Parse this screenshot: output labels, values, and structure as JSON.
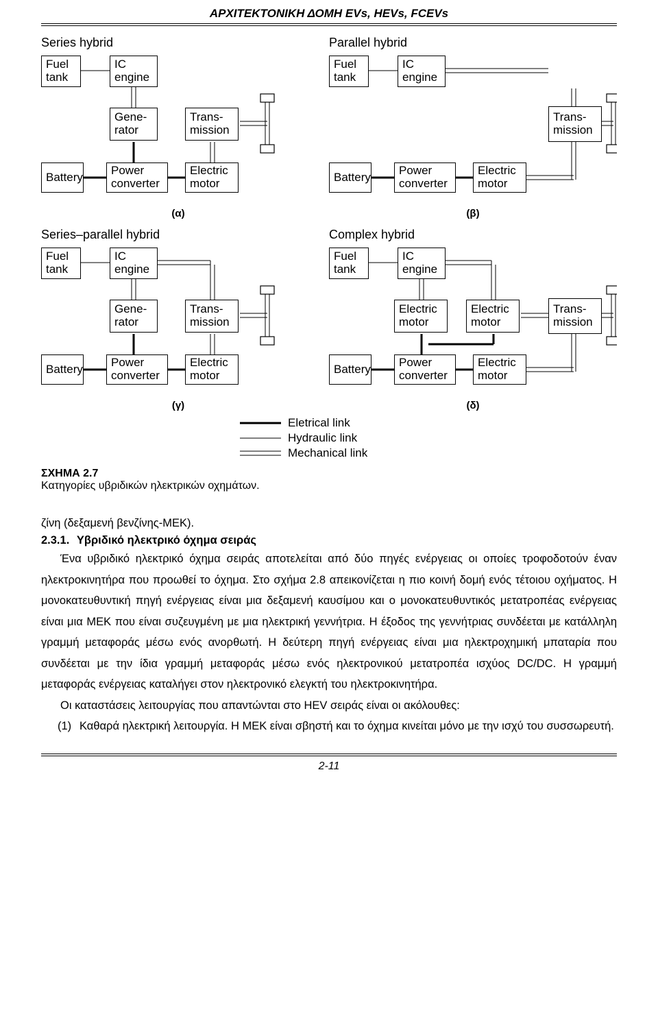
{
  "header": "ΑΡΧΙΤΕΚΤΟΝΙΚΗ ΔΟΜΗ EVs, HEVs, FCEVs",
  "diagrams": {
    "a": {
      "title": "Series hybrid",
      "label": "(α)",
      "boxes": {
        "fuel": "Fuel\ntank",
        "ic": "IC\nengine",
        "gen": "Gene-\nrator",
        "trans": "Trans-\nmission",
        "batt": "Battery",
        "conv": "Power\nconverter",
        "motor": "Electric\nmotor"
      }
    },
    "b": {
      "title": "Parallel hybrid",
      "label": "(β)",
      "boxes": {
        "fuel": "Fuel\ntank",
        "ic": "IC\nengine",
        "trans": "Trans-\nmission",
        "batt": "Battery",
        "conv": "Power\nconverter",
        "motor": "Electric\nmotor"
      }
    },
    "c": {
      "title": "Series–parallel  hybrid",
      "label": "(γ)",
      "boxes": {
        "fuel": "Fuel\ntank",
        "ic": "IC\nengine",
        "gen": "Gene-\nrator",
        "trans": "Trans-\nmission",
        "batt": "Battery",
        "conv": "Power\nconverter",
        "motor": "Electric\nmotor"
      }
    },
    "d": {
      "title": "Complex hybrid",
      "label": "(δ)",
      "boxes": {
        "fuel": "Fuel\ntank",
        "ic": "IC\nengine",
        "em1": "Electric\nmotor",
        "em2": "Electric\nmotor",
        "trans": "Trans-\nmission",
        "batt": "Battery",
        "conv": "Power\nconverter",
        "motor": "Electric\nmotor"
      }
    }
  },
  "legend": {
    "electrical": "Eletrical link",
    "hydraulic": "Hydraulic link",
    "mechanical": "Mechanical link"
  },
  "caption": {
    "head": "ΣΧΗΜΑ 2.7",
    "body": "Κατηγορίες υβριδικών ηλεκτρικών οχημάτων."
  },
  "frag": "ζίνη (δεξαμενή βενζίνης-ΜΕΚ).",
  "section": {
    "num": "2.3.1.",
    "title": "Υβριδικό ηλεκτρικό όχημα σειράς"
  },
  "body1": "Ένα υβριδικό ηλεκτρικό όχημα σειράς αποτελείται από δύο πηγές ενέργειας οι οποίες τροφοδοτούν έναν ηλεκτροκινητήρα που προωθεί το όχημα. Στο σχήμα 2.8 απεικονίζεται η πιο κοινή δομή ενός τέτοιου οχήματος. Η μονοκατευθυντική πηγή ενέργειας είναι μια δεξαμενή καυσίμου και ο μονοκατευθυντικός μετατροπέας ενέργειας είναι μια ΜΕΚ που είναι συζευγμένη με μια ηλεκτρική γεννήτρια. Η έξοδος της γεννήτριας συνδέεται με κατάλληλη γραμμή μεταφοράς μέσω ενός ανορθωτή. Η δεύτερη πηγή ενέργειας είναι μια ηλεκτροχημική μπαταρία που συνδέεται με την ίδια γραμμή μεταφοράς μέσω ενός ηλεκτρονικού μετατροπέα ισχύος DC/DC. Η γραμμή μεταφοράς ενέργειας καταλήγει στον ηλεκτρονικό ελεγκτή του ηλεκτροκινητήρα.",
  "body2": "Οι καταστάσεις λειτουργίας που απαντώνται στο HEV σειράς είναι οι ακόλουθες:",
  "list1": {
    "num": "(1)",
    "text": "Καθαρά ηλεκτρική λειτουργία. Η ΜΕΚ είναι σβηστή και το όχημα κινείται μόνο με την ισχύ του συσσωρευτή."
  },
  "pagenum": "2-11",
  "style": {
    "box_border": "#000000",
    "thick_w": 3,
    "thin_w": 1,
    "bg": "#ffffff"
  }
}
